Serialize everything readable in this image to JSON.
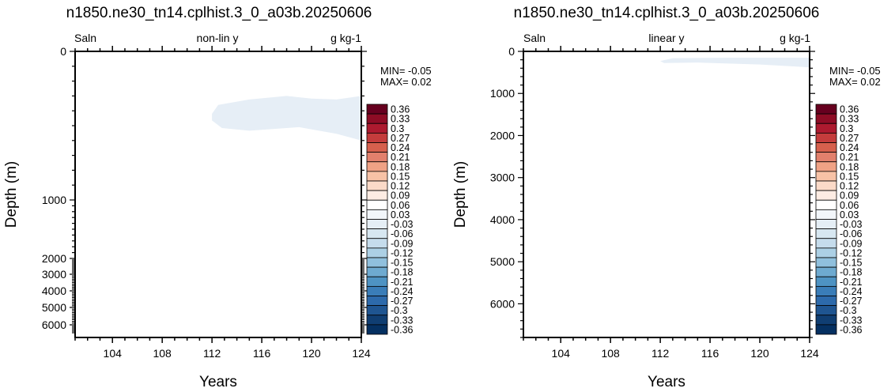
{
  "colors": {
    "anomaly_fill": "#e6eef6",
    "frame": "#000000",
    "background": "#ffffff"
  },
  "colorbar": {
    "levels": [
      "0.36",
      "0.33",
      "0.3",
      "0.27",
      "0.24",
      "0.21",
      "0.18",
      "0.15",
      "0.12",
      "0.09",
      "0.06",
      "0.03",
      "-0.03",
      "-0.06",
      "-0.09",
      "-0.12",
      "-0.15",
      "-0.18",
      "-0.21",
      "-0.24",
      "-0.27",
      "-0.3",
      "-0.33",
      "-0.36"
    ],
    "colors": [
      "#67001f",
      "#8e0c25",
      "#ad1a2f",
      "#c43c3c",
      "#d6604d",
      "#e2806c",
      "#f0a285",
      "#f7c2a6",
      "#fbdac8",
      "#fdece3",
      "#ffffff",
      "#f2f6fa",
      "#e5eef5",
      "#d7e7f1",
      "#c5dcec",
      "#acd0e5",
      "#90c0dd",
      "#6eaad0",
      "#4e93c3",
      "#3a7db8",
      "#2d6aab",
      "#1f5591",
      "#103e72",
      "#053061"
    ]
  },
  "chart_data": [
    {
      "type": "heatmap",
      "title": "n1850.ne30_tn14.cplhist.3_0_a03b.20250606",
      "left_label": "Saln",
      "center_label": "non-lin y",
      "right_label": "g kg-1",
      "xlabel": "Years",
      "ylabel": "Depth (m)",
      "xlim": [
        101,
        124
      ],
      "xticks": [
        "104",
        "108",
        "112",
        "116",
        "120",
        "124"
      ],
      "ylim": [
        6500,
        0
      ],
      "yscale": "non-linear",
      "yticks": [
        "0",
        "1000",
        "2000",
        "3000",
        "4000",
        "5000",
        "6000"
      ],
      "min_label": "MIN= -0.05",
      "max_label": "MAX=  0.02",
      "anomaly_region": {
        "years": [
          112,
          124
        ],
        "depth_range_m": [
          300,
          600
        ],
        "level": "-0.03 to 0.03"
      }
    },
    {
      "type": "heatmap",
      "title": "n1850.ne30_tn14.cplhist.3_0_a03b.20250606",
      "left_label": "Saln",
      "center_label": "linear y",
      "right_label": "g kg-1",
      "xlabel": "Years",
      "ylabel": "Depth (m)",
      "xlim": [
        101,
        124
      ],
      "xticks": [
        "104",
        "108",
        "112",
        "116",
        "120",
        "124"
      ],
      "ylim": [
        6800,
        0
      ],
      "yscale": "linear",
      "yticks": [
        "0",
        "1000",
        "2000",
        "3000",
        "4000",
        "5000",
        "6000"
      ],
      "min_label": "MIN= -0.05",
      "max_label": "MAX=  0.02",
      "anomaly_region": {
        "years": [
          112,
          124
        ],
        "depth_range_m": [
          150,
          380
        ],
        "level": "-0.03 to 0.03"
      }
    }
  ]
}
